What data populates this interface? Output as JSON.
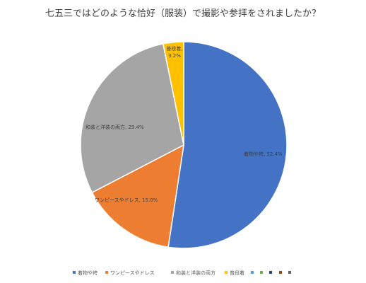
{
  "chart_data": {
    "type": "pie",
    "title": "七五三ではどのような恰好（服装）で撮影や参拝をされましたか？",
    "slices": [
      {
        "name": "着物や袴",
        "value": 52.4,
        "label": "着物や袴, 52.4%",
        "color": "#4472C4"
      },
      {
        "name": "ワンピースやドレス",
        "value": 15.0,
        "label": "ワンピースやドレス, 15.0%",
        "color": "#ED7D31"
      },
      {
        "name": "和装と洋装の両方",
        "value": 29.4,
        "label": "和装と洋装の両方, 29.4%",
        "color": "#A5A5A5"
      },
      {
        "name": "普段着",
        "value": 3.2,
        "label": "普段着, 3.2%",
        "color": "#FFC000"
      }
    ],
    "legend": {
      "position": "bottom",
      "extra_markers": [
        "#5B9BD5",
        "#70AD47",
        "#264478",
        "#9E480E",
        "#636363"
      ]
    }
  }
}
